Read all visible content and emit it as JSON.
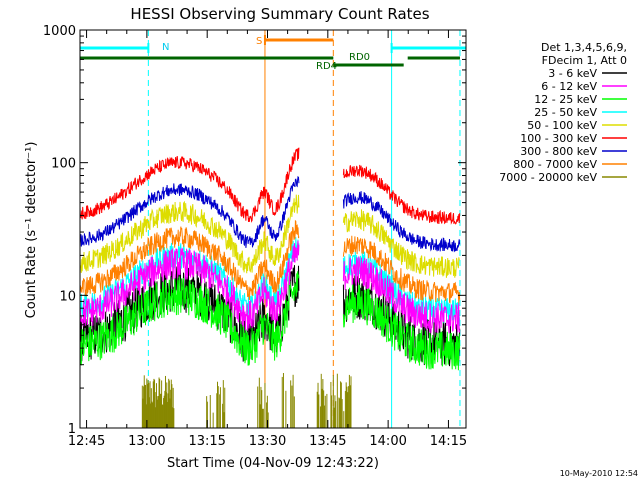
{
  "chart_data": {
    "type": "line",
    "title": "HESSI Observing Summary Count Rates",
    "xlabel": "Start Time (04-Nov-09 12:43:22)",
    "ylabel": "Count Rate (s⁻¹ detector⁻¹)",
    "x_unit": "minutes from 12:43:22",
    "xlim": [
      0,
      96
    ],
    "ylim": [
      1,
      1000
    ],
    "yscale": "log",
    "x_ticks": [
      "12:45",
      "13:00",
      "13:15",
      "13:30",
      "13:45",
      "14:00",
      "14:15"
    ],
    "y_ticks": [
      "1",
      "10",
      "100",
      "1000"
    ],
    "legend_header": [
      "Det 1,3,4,5,6,9,",
      "FDecim 1, Att 0"
    ],
    "legend_position": "right",
    "footer_date": "10-May-2010 12:54",
    "series": [
      {
        "name": "3 - 6 keV",
        "color": "#000000",
        "base": 4.5,
        "noise": 0.18
      },
      {
        "name": "6 - 12 keV",
        "color": "#ff00ff",
        "base": 7.0,
        "noise": 0.12
      },
      {
        "name": "12 - 25 keV",
        "color": "#00ff00",
        "base": 4.0,
        "noise": 0.15
      },
      {
        "name": "25 - 50 keV",
        "color": "#00ffff",
        "base": 8.0,
        "noise": 0.1
      },
      {
        "name": "50 - 100 keV",
        "color": "#dddd00",
        "base": 17.0,
        "noise": 0.08
      },
      {
        "name": "100 - 300 keV",
        "color": "#ff0000",
        "base": 40.0,
        "noise": 0.05
      },
      {
        "name": "300 - 800 keV",
        "color": "#0000cc",
        "base": 25.0,
        "noise": 0.05
      },
      {
        "name": "800 - 7000 keV",
        "color": "#ff8000",
        "base": 11.0,
        "noise": 0.08
      },
      {
        "name": "7000 - 20000 keV",
        "color": "#888800",
        "base": 0,
        "noise": 0
      }
    ],
    "flags": [
      {
        "label": "N",
        "color": "#00ffff"
      },
      {
        "label": "S",
        "color": "#ff8000"
      },
      {
        "label": "RD0",
        "color": "#006400"
      },
      {
        "label": "RD4",
        "color": "#006400"
      }
    ],
    "segments": [
      {
        "kind": "night",
        "x0": 0,
        "x1": 17,
        "color": "#00ffff"
      },
      {
        "kind": "night",
        "x0": 77.5,
        "x1": 96,
        "color": "#00ffff"
      },
      {
        "kind": "saa",
        "x0": 46,
        "x1": 63,
        "color": "#ff8000"
      },
      {
        "kind": "rd",
        "x0": 0,
        "x1": 63,
        "color": "#006400"
      },
      {
        "kind": "rd",
        "x0": 63,
        "x1": 80.5,
        "color": "#006400"
      },
      {
        "kind": "rd",
        "x0": 81.5,
        "x1": 94.5,
        "color": "#006400"
      }
    ],
    "markers": [
      {
        "x": 17,
        "style": "dash",
        "color": "#00ffff"
      },
      {
        "x": 46,
        "style": "solid",
        "color": "#ff8000"
      },
      {
        "x": 63,
        "style": "dash",
        "color": "#ff8000"
      },
      {
        "x": 77.5,
        "style": "solid",
        "color": "#00ffff"
      },
      {
        "x": 94.5,
        "style": "dash",
        "color": "#00ffff"
      }
    ],
    "data_windows": [
      [
        0,
        54.5
      ],
      [
        65.5,
        94.5
      ]
    ]
  }
}
